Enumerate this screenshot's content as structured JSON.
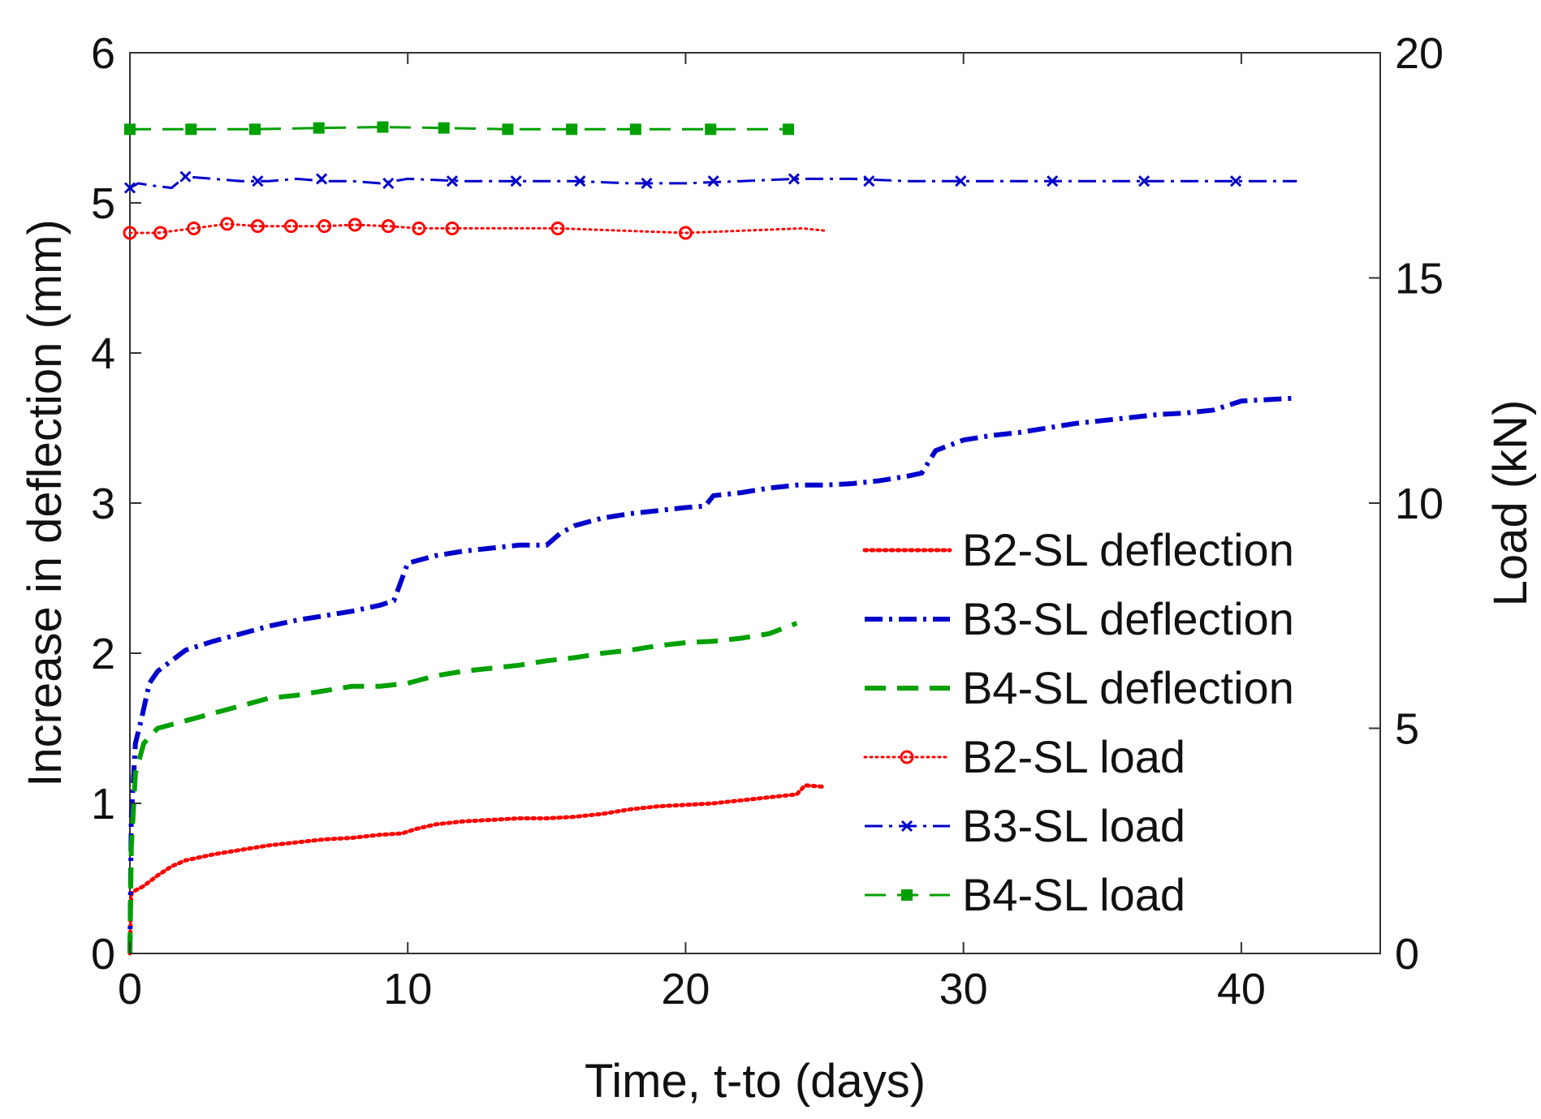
{
  "chart_data": {
    "type": "line",
    "title": "",
    "xlabel": "Time, t-to (days)",
    "ylabel": "Increase in deflection (mm)",
    "y2label": "Load (kN)",
    "xlim": [
      0,
      45
    ],
    "ylim": [
      0,
      6
    ],
    "y2lim": [
      0,
      20
    ],
    "xticks": [
      0,
      10,
      20,
      30,
      40
    ],
    "yticks": [
      0,
      1,
      2,
      3,
      4,
      5,
      6
    ],
    "y2ticks": [
      0,
      5,
      10,
      15,
      20
    ],
    "grid": false,
    "legend_position": "right",
    "series": [
      {
        "name": "B2-SL deflection",
        "axis": "left",
        "color": "#ff0000",
        "style": "dotted",
        "marker": "none",
        "x": [
          0,
          0.05,
          0.2,
          0.5,
          1,
          1.5,
          2,
          3,
          4,
          5,
          6,
          7,
          8,
          9,
          9.8,
          10.3,
          11,
          12,
          13,
          14,
          15,
          16,
          17,
          18,
          19,
          20,
          21,
          22,
          23,
          24,
          24.3,
          25
        ],
        "y": [
          0,
          0.4,
          0.42,
          0.45,
          0.52,
          0.58,
          0.62,
          0.66,
          0.69,
          0.72,
          0.74,
          0.76,
          0.77,
          0.79,
          0.8,
          0.83,
          0.86,
          0.88,
          0.89,
          0.9,
          0.9,
          0.91,
          0.93,
          0.96,
          0.98,
          0.99,
          1.0,
          1.02,
          1.04,
          1.06,
          1.12,
          1.11
        ]
      },
      {
        "name": "B3-SL deflection",
        "axis": "left",
        "color": "#0000cc",
        "style": "dashdot",
        "marker": "none",
        "x": [
          0,
          0.05,
          0.2,
          0.4,
          0.7,
          1,
          1.5,
          2,
          3,
          4,
          5,
          6,
          7,
          8,
          9,
          9.5,
          10,
          11,
          12,
          13,
          14,
          15,
          15.5,
          16,
          17,
          18,
          19,
          20,
          20.7,
          21,
          22,
          23,
          24,
          25,
          26,
          27,
          28,
          28.5,
          29,
          30,
          31,
          32,
          33,
          34,
          35,
          36,
          37,
          38,
          39,
          40,
          41,
          42
        ],
        "y": [
          0,
          0.9,
          1.4,
          1.55,
          1.8,
          1.88,
          1.95,
          2.02,
          2.08,
          2.13,
          2.18,
          2.22,
          2.25,
          2.28,
          2.32,
          2.35,
          2.6,
          2.65,
          2.68,
          2.7,
          2.72,
          2.72,
          2.8,
          2.85,
          2.9,
          2.93,
          2.95,
          2.97,
          2.98,
          3.05,
          3.07,
          3.1,
          3.12,
          3.12,
          3.13,
          3.15,
          3.18,
          3.2,
          3.35,
          3.42,
          3.45,
          3.47,
          3.5,
          3.53,
          3.55,
          3.57,
          3.59,
          3.6,
          3.62,
          3.68,
          3.69,
          3.7
        ]
      },
      {
        "name": "B4-SL deflection",
        "axis": "left",
        "color": "#00a000",
        "style": "dashed",
        "marker": "none",
        "x": [
          0,
          0.05,
          0.2,
          0.5,
          1,
          2,
          3,
          4,
          5,
          6,
          7,
          8,
          9,
          10,
          11,
          12,
          13,
          14,
          15,
          16,
          17,
          18,
          19,
          20,
          21,
          22,
          23,
          24
        ],
        "y": [
          0,
          0.7,
          1.2,
          1.4,
          1.5,
          1.55,
          1.6,
          1.65,
          1.7,
          1.72,
          1.75,
          1.78,
          1.78,
          1.8,
          1.85,
          1.88,
          1.9,
          1.92,
          1.95,
          1.97,
          2.0,
          2.02,
          2.05,
          2.07,
          2.08,
          2.1,
          2.13,
          2.2
        ]
      },
      {
        "name": "B2-SL load",
        "axis": "right",
        "color": "#ff0000",
        "style": "dotted",
        "marker": "circle",
        "x": [
          0,
          1,
          2.3,
          3.5,
          4.6,
          5.8,
          7,
          8.1,
          9.3,
          10.4,
          11.6,
          15.4,
          20,
          24.2,
          25
        ],
        "y": [
          16.0,
          16.0,
          16.1,
          16.2,
          16.15,
          16.15,
          16.15,
          16.18,
          16.15,
          16.1,
          16.1,
          16.1,
          16.0,
          16.1,
          16.05
        ],
        "markers_x": [
          0,
          1.1,
          2.3,
          3.5,
          4.6,
          5.8,
          7,
          8.1,
          9.3,
          10.4,
          11.6,
          15.4,
          20
        ],
        "markers_y": [
          16.0,
          16.0,
          16.1,
          16.2,
          16.15,
          16.15,
          16.15,
          16.18,
          16.15,
          16.1,
          16.1,
          16.1,
          16.0
        ]
      },
      {
        "name": "B3-SL load",
        "axis": "right",
        "color": "#0000cc",
        "style": "dashdot",
        "marker": "x",
        "x": [
          0,
          0.3,
          0.8,
          1.5,
          2,
          3,
          4,
          5,
          6,
          7,
          8,
          9,
          10,
          12,
          14,
          16,
          18,
          20,
          22,
          24,
          26,
          28,
          30,
          32,
          34,
          36,
          38,
          40,
          42
        ],
        "y": [
          17.0,
          17.1,
          17.05,
          17.0,
          17.25,
          17.2,
          17.15,
          17.15,
          17.2,
          17.15,
          17.15,
          17.1,
          17.2,
          17.15,
          17.15,
          17.15,
          17.1,
          17.1,
          17.15,
          17.2,
          17.2,
          17.15,
          17.15,
          17.15,
          17.15,
          17.15,
          17.15,
          17.15,
          17.15
        ],
        "markers_x": [
          0,
          2,
          4.6,
          6.9,
          9.3,
          11.6,
          13.9,
          16.2,
          18.6,
          21,
          23.9,
          26.6,
          29.9,
          33.2,
          36.5,
          39.8
        ],
        "markers_y": [
          17.0,
          17.25,
          17.15,
          17.2,
          17.1,
          17.15,
          17.15,
          17.15,
          17.1,
          17.15,
          17.2,
          17.15,
          17.15,
          17.15,
          17.15,
          17.15
        ]
      },
      {
        "name": "B4-SL load",
        "axis": "right",
        "color": "#00a000",
        "style": "dashed",
        "marker": "square",
        "x": [
          0,
          2.2,
          4.5,
          6.8,
          9.1,
          11.3,
          13.6,
          15.9,
          18.2,
          20.9,
          23.7
        ],
        "y": [
          18.3,
          18.3,
          18.3,
          18.33,
          18.35,
          18.33,
          18.3,
          18.3,
          18.3,
          18.3,
          18.3
        ],
        "markers_x": [
          0,
          2.2,
          4.5,
          6.8,
          9.1,
          11.3,
          13.6,
          15.9,
          18.2,
          20.9,
          23.7
        ],
        "markers_y": [
          18.3,
          18.3,
          18.3,
          18.33,
          18.35,
          18.33,
          18.3,
          18.3,
          18.3,
          18.3,
          18.3
        ]
      }
    ]
  }
}
